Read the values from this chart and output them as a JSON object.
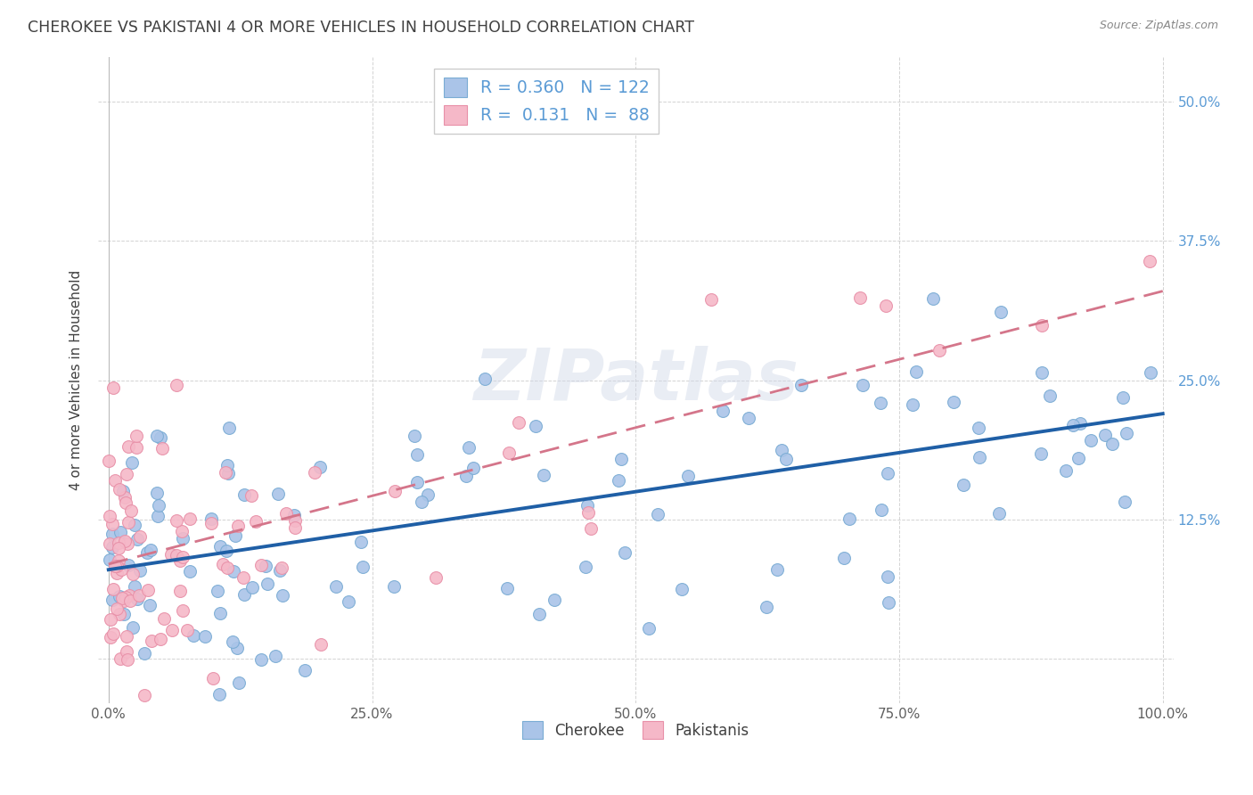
{
  "title": "CHEROKEE VS PAKISTANI 4 OR MORE VEHICLES IN HOUSEHOLD CORRELATION CHART",
  "source": "Source: ZipAtlas.com",
  "ylabel": "4 or more Vehicles in Household",
  "cherokee_color": "#aac4e8",
  "cherokee_edge_color": "#7aacd4",
  "pakistani_color": "#f5b8c8",
  "pakistani_edge_color": "#e890a8",
  "cherokee_line_color": "#1f5fa6",
  "pakistani_line_color": "#d4758a",
  "background_color": "#ffffff",
  "grid_color": "#c8c8c8",
  "title_color": "#404040",
  "ytick_color": "#5b9bd5",
  "xtick_color": "#606060",
  "watermark": "ZIPatlas",
  "cherokee_R": 0.36,
  "cherokee_N": 122,
  "pakistani_R": 0.131,
  "pakistani_N": 88,
  "cherokee_line_start_y": 8.0,
  "cherokee_line_end_y": 22.0,
  "pakistani_line_start_y": 8.5,
  "pakistani_line_end_y": 33.0,
  "xlim_min": -1,
  "xlim_max": 101,
  "ylim_min": -4,
  "ylim_max": 54,
  "xtick_positions": [
    0,
    25,
    50,
    75,
    100
  ],
  "xticklabels": [
    "0.0%",
    "25.0%",
    "50.0%",
    "75.0%",
    "100.0%"
  ],
  "ytick_positions": [
    0,
    12.5,
    25.0,
    37.5,
    50.0
  ],
  "yticklabels": [
    "",
    "12.5%",
    "25.0%",
    "37.5%",
    "50.0%"
  ],
  "legend_R_label1": "R = 0.360",
  "legend_N_label1": "N = 122",
  "legend_R_label2": "R =  0.131",
  "legend_N_label2": "N =  88",
  "bottom_legend_labels": [
    "Cherokee",
    "Pakistanis"
  ]
}
